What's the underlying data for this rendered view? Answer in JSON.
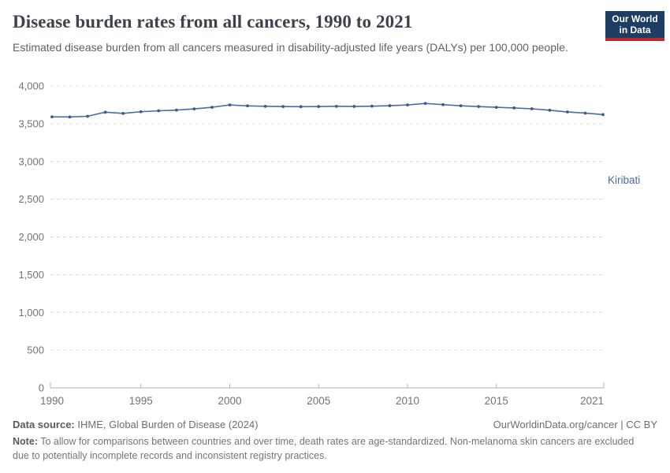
{
  "header": {
    "title": "Disease burden rates from all cancers, 1990 to 2021",
    "subtitle": "Estimated disease burden from all cancers measured in disability-adjusted life years (DALYs) per 100,000 people.",
    "logo": {
      "line1": "Our World",
      "line2": "in Data",
      "bg_color": "#1d3d63",
      "accent_color": "#c0282e"
    }
  },
  "chart_data": {
    "type": "line",
    "title": "Disease burden rates from all cancers, 1990 to 2021",
    "xlabel": "",
    "ylabel": "DALYs per 100,000 people",
    "x": [
      1990,
      1991,
      1992,
      1993,
      1994,
      1995,
      1996,
      1997,
      1998,
      1999,
      2000,
      2001,
      2002,
      2003,
      2004,
      2005,
      2006,
      2007,
      2008,
      2009,
      2010,
      2011,
      2012,
      2013,
      2014,
      2015,
      2016,
      2017,
      2018,
      2019,
      2020,
      2021
    ],
    "series": [
      {
        "name": "Kiribati",
        "color": "#4c6a9c",
        "values": [
          3590,
          3589,
          3598,
          3652,
          3636,
          3658,
          3671,
          3680,
          3696,
          3717,
          3748,
          3736,
          3730,
          3727,
          3725,
          3727,
          3730,
          3728,
          3732,
          3738,
          3748,
          3768,
          3752,
          3737,
          3727,
          3717,
          3708,
          3697,
          3678,
          3655,
          3640,
          3620
        ]
      }
    ],
    "ylim": [
      0,
      4000
    ],
    "yticks": [
      0,
      500,
      1000,
      1500,
      2000,
      2500,
      3000,
      3500,
      4000
    ],
    "ytick_labels": [
      "0",
      "500",
      "1,000",
      "1,500",
      "2,000",
      "2,500",
      "3,000",
      "3,500",
      "4,000"
    ],
    "xticks": [
      1990,
      1995,
      2000,
      2005,
      2010,
      2015,
      2021
    ],
    "xtick_labels": [
      "1990",
      "1995",
      "2000",
      "2005",
      "2010",
      "2015",
      "2021"
    ],
    "grid": "horizontal-dashed",
    "legend_position": "end-of-line",
    "colors": {
      "grid": "#dcdcdc",
      "axis": "#b3b3b3",
      "tick_text": "#737373",
      "line": "#4c6a9c",
      "point": "#3d5a89"
    }
  },
  "footer": {
    "datasource_label": "Data source:",
    "datasource_value": " IHME, Global Burden of Disease (2024)",
    "attribution": "OurWorldinData.org/cancer | CC BY",
    "note_label": "Note:",
    "note_text": " To allow for comparisons between countries and over time, death rates are age-standardized. Non-melanoma skin cancers are excluded due to potentially incomplete records and inconsistent registry practices."
  }
}
